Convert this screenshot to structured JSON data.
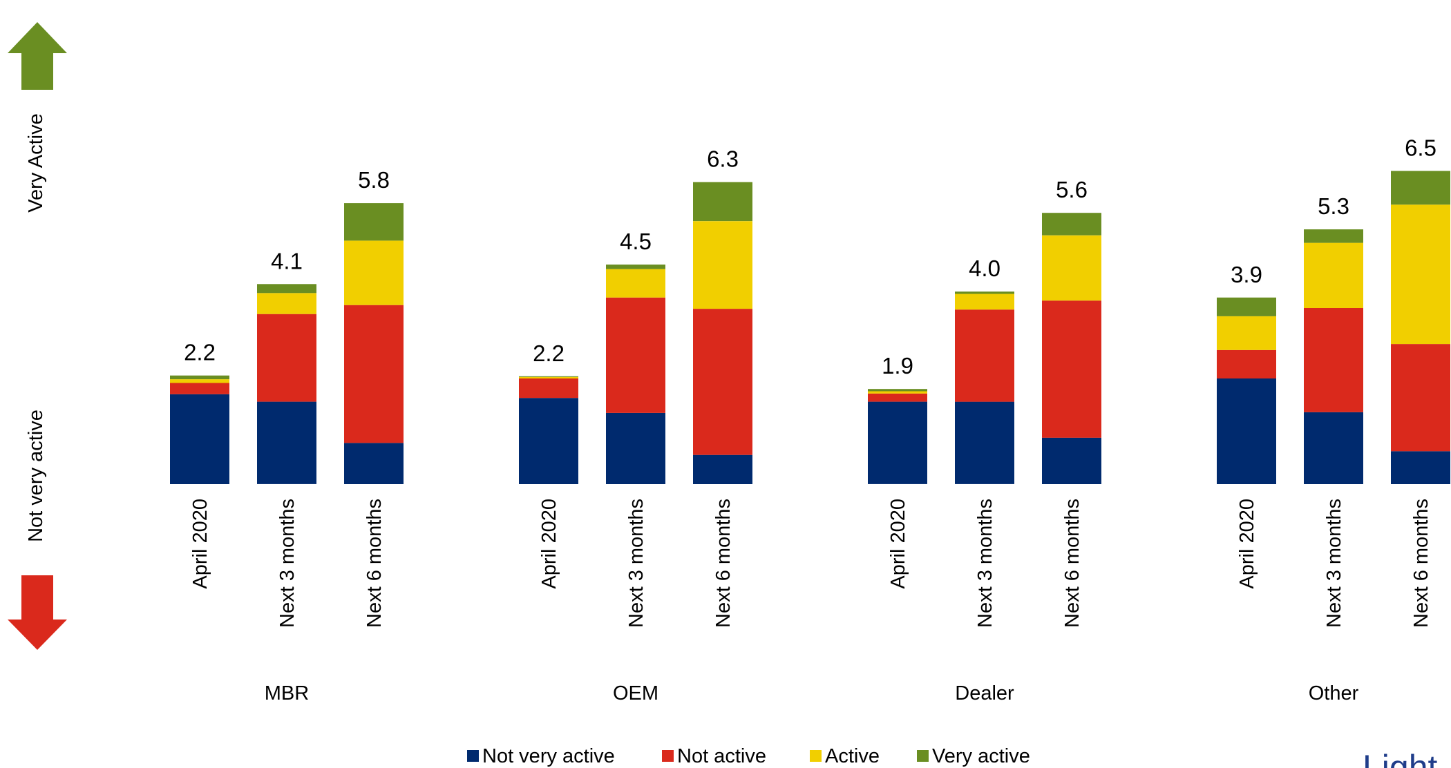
{
  "chart_data": {
    "type": "bar",
    "stacked": true,
    "groups": [
      "MBR",
      "OEM",
      "Dealer",
      "Other"
    ],
    "categories": [
      "April 2020",
      "Next 3 months",
      "Next 6 months"
    ],
    "series": [
      {
        "name": "Not very active",
        "color": "#002A6E",
        "values": [
          [
            12,
            11,
            5.5
          ],
          [
            11.5,
            9.5,
            3.9
          ],
          [
            11,
            11,
            6.2
          ],
          [
            14.1,
            9.6,
            4.4
          ]
        ]
      },
      {
        "name": "Not active",
        "color": "#DA291C",
        "values": [
          [
            1.5,
            11.7,
            18.4
          ],
          [
            2.6,
            15.4,
            19.5
          ],
          [
            1.1,
            12.3,
            18.3
          ],
          [
            3.8,
            13.9,
            14.3
          ]
        ]
      },
      {
        "name": "Active",
        "color": "#F1CF00",
        "values": [
          [
            0.5,
            2.8,
            8.6
          ],
          [
            0.2,
            3.8,
            11.7
          ],
          [
            0.3,
            2.1,
            8.7
          ],
          [
            4.5,
            8.7,
            18.6
          ]
        ]
      },
      {
        "name": "Very active",
        "color": "#6A8E22",
        "values": [
          [
            0.5,
            1.2,
            5
          ],
          [
            0.1,
            0.6,
            5.2
          ],
          [
            0.3,
            0.3,
            3
          ],
          [
            2.5,
            1.8,
            4.5
          ]
        ]
      }
    ],
    "totals": [
      [
        "2.2",
        "4.1",
        "5.8"
      ],
      [
        "2.2",
        "4.5",
        "6.3"
      ],
      [
        "1.9",
        "4.0",
        "5.6"
      ],
      [
        "3.9",
        "5.3",
        "6.5"
      ]
    ],
    "y_axis_labels": {
      "top": "Very Active",
      "bottom": "Not very active"
    },
    "arrow_colors": {
      "up": "#6A8E22",
      "down": "#DA291C"
    },
    "legend_position": "bottom",
    "grid": false
  },
  "footer": {
    "logo_text": "Light"
  }
}
